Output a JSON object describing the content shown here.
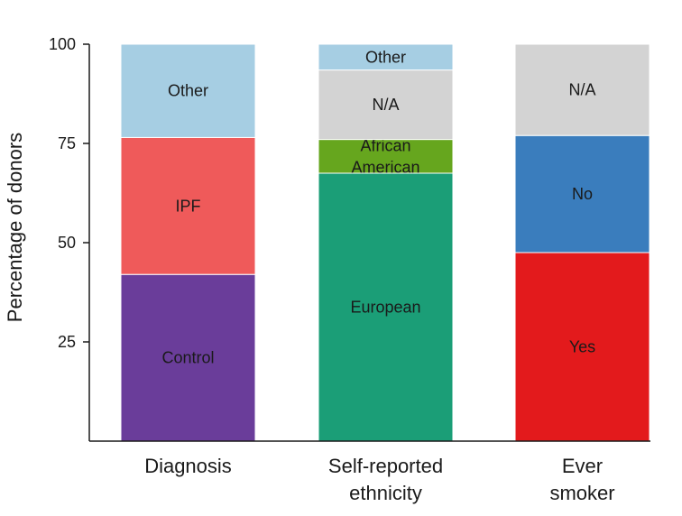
{
  "chart_data": {
    "type": "bar",
    "stacked": true,
    "ylabel": "Percentage of donors",
    "ylim": [
      0,
      100
    ],
    "yticks": [
      25,
      50,
      75,
      100
    ],
    "grid": false,
    "bars": [
      {
        "category": [
          "Diagnosis"
        ],
        "segments": [
          {
            "label": "Control",
            "value": 42,
            "color": "#6a3d9a"
          },
          {
            "label": "IPF",
            "value": 34.5,
            "color": "#ef5a5a"
          },
          {
            "label": "Other",
            "value": 23.5,
            "color": "#a6cee3"
          }
        ]
      },
      {
        "category": [
          "Self-reported",
          "ethnicity"
        ],
        "segments": [
          {
            "label": "European",
            "value": 67.5,
            "color": "#1b9e77"
          },
          {
            "label": "African\nAmerican",
            "value": 8.5,
            "color": "#66a61e"
          },
          {
            "label": "N/A",
            "value": 17.5,
            "color": "#d3d3d3"
          },
          {
            "label": "Other",
            "value": 6.5,
            "color": "#a6cee3"
          }
        ]
      },
      {
        "category": [
          "Ever",
          "smoker"
        ],
        "segments": [
          {
            "label": "Yes",
            "value": 47.5,
            "color": "#e31a1c"
          },
          {
            "label": "No",
            "value": 29.5,
            "color": "#3a7dbd"
          },
          {
            "label": "N/A",
            "value": 23,
            "color": "#d3d3d3"
          }
        ]
      }
    ]
  }
}
